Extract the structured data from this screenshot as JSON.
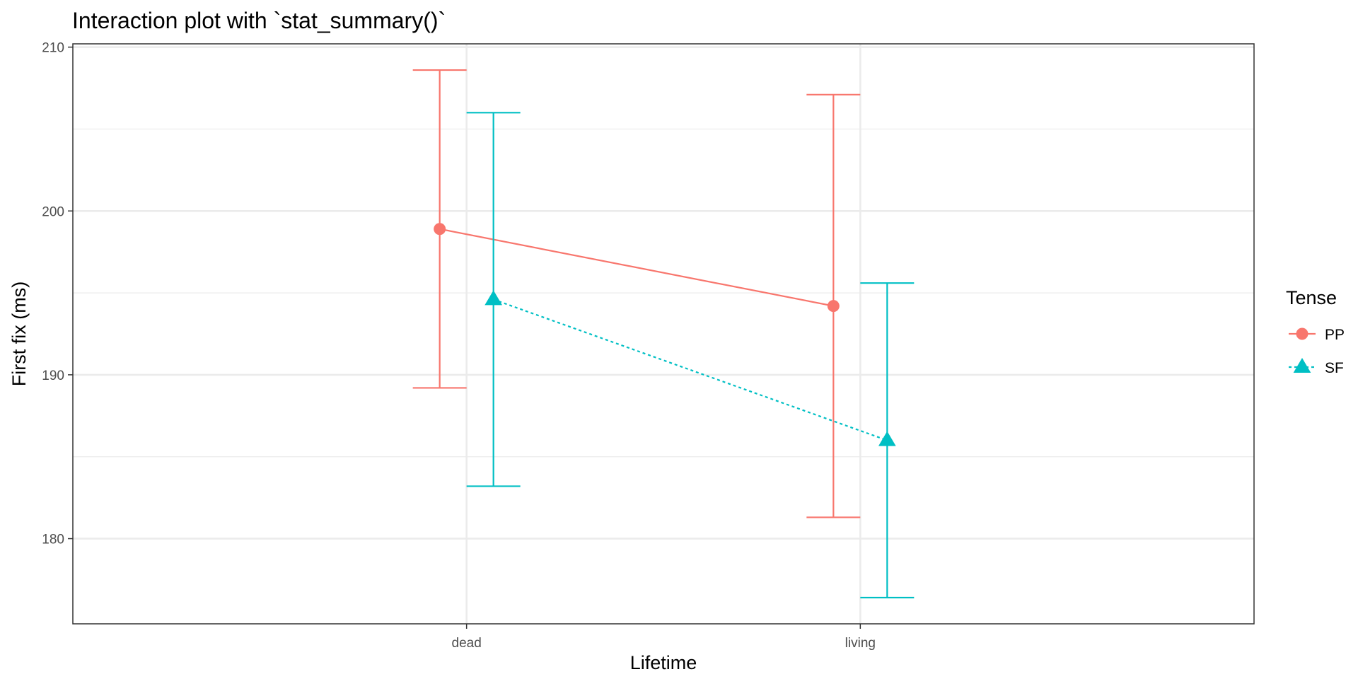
{
  "chart_data": {
    "type": "line",
    "title": "Interaction plot with `stat_summary()`",
    "xlabel": "Lifetime",
    "ylabel": "First fix (ms)",
    "categories": [
      "dead",
      "living"
    ],
    "ylim": [
      174.8,
      210.2
    ],
    "yticks": [
      180,
      190,
      200,
      210
    ],
    "yminor": [
      185,
      195,
      205
    ],
    "grid": true,
    "legend": {
      "title": "Tense",
      "position": "right"
    },
    "series": [
      {
        "name": "PP",
        "color": "#F8766D",
        "marker": "circle",
        "linestyle": "solid",
        "dodge": -1,
        "values": [
          198.9,
          194.2
        ],
        "ymin": [
          189.2,
          181.3
        ],
        "ymax": [
          208.6,
          207.1
        ]
      },
      {
        "name": "SF",
        "color": "#00BFC4",
        "marker": "triangle",
        "linestyle": "dotted",
        "dodge": 1,
        "values": [
          194.6,
          186.0
        ],
        "ymin": [
          183.2,
          176.4
        ],
        "ymax": [
          206.0,
          195.6
        ]
      }
    ]
  }
}
